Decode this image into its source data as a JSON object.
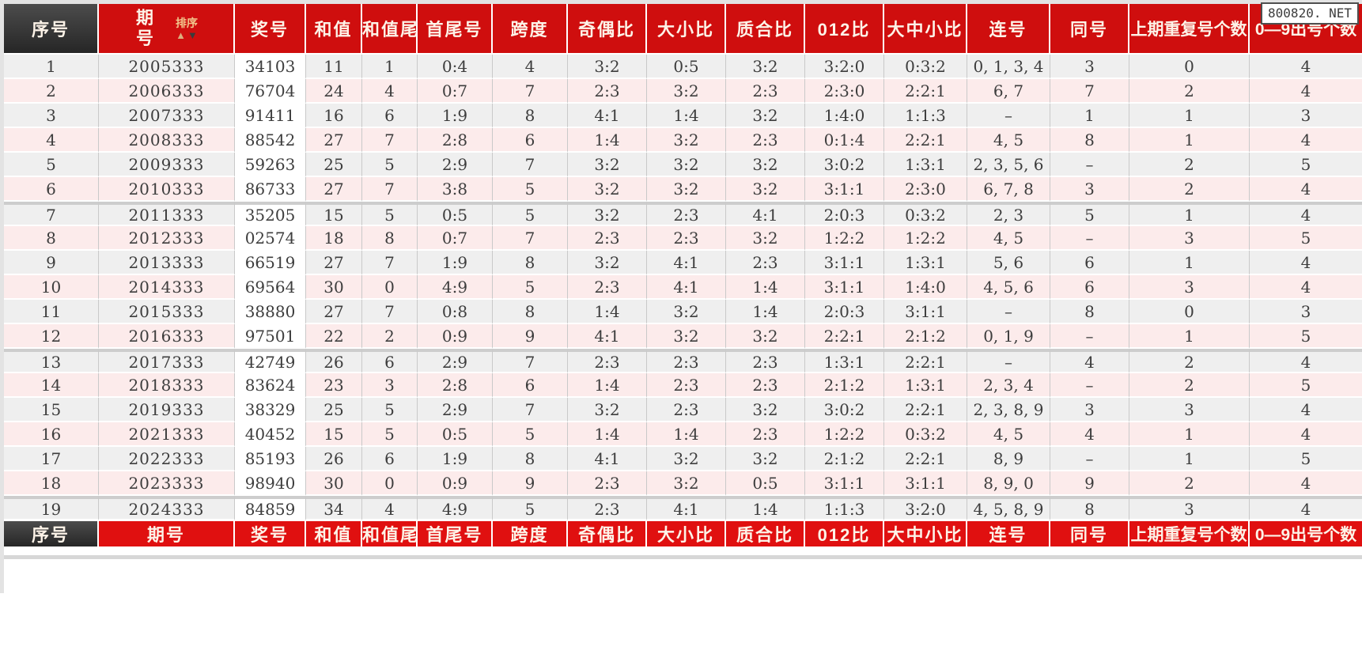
{
  "page": {
    "watermark": "800820. NET"
  },
  "table": {
    "headers": [
      "序号",
      "期号",
      "奖号",
      "和值",
      "和值尾",
      "首尾号",
      "跨度",
      "奇偶比",
      "大小比",
      "质合比",
      "012比",
      "大中小比",
      "连号",
      "同号",
      "上期重复号个数",
      "0—9出号个数"
    ],
    "sort_control": {
      "label": "排序",
      "up_arrow": "▲",
      "down_arrow": "▼"
    },
    "group_breaks": [
      6,
      12,
      18
    ],
    "rows": [
      [
        "1",
        "2005333",
        "34103",
        "11",
        "1",
        "0:4",
        "4",
        "3:2",
        "0:5",
        "3:2",
        "3:2:0",
        "0:3:2",
        "0, 1, 3, 4",
        "3",
        "0",
        "4"
      ],
      [
        "2",
        "2006333",
        "76704",
        "24",
        "4",
        "0:7",
        "7",
        "2:3",
        "3:2",
        "2:3",
        "2:3:0",
        "2:2:1",
        "6, 7",
        "7",
        "2",
        "4"
      ],
      [
        "3",
        "2007333",
        "91411",
        "16",
        "6",
        "1:9",
        "8",
        "4:1",
        "1:4",
        "3:2",
        "1:4:0",
        "1:1:3",
        "–",
        "1",
        "1",
        "3"
      ],
      [
        "4",
        "2008333",
        "88542",
        "27",
        "7",
        "2:8",
        "6",
        "1:4",
        "3:2",
        "2:3",
        "0:1:4",
        "2:2:1",
        "4, 5",
        "8",
        "1",
        "4"
      ],
      [
        "5",
        "2009333",
        "59263",
        "25",
        "5",
        "2:9",
        "7",
        "3:2",
        "3:2",
        "3:2",
        "3:0:2",
        "1:3:1",
        "2, 3, 5, 6",
        "–",
        "2",
        "5"
      ],
      [
        "6",
        "2010333",
        "86733",
        "27",
        "7",
        "3:8",
        "5",
        "3:2",
        "3:2",
        "3:2",
        "3:1:1",
        "2:3:0",
        "6, 7, 8",
        "3",
        "2",
        "4"
      ],
      [
        "7",
        "2011333",
        "35205",
        "15",
        "5",
        "0:5",
        "5",
        "3:2",
        "2:3",
        "4:1",
        "2:0:3",
        "0:3:2",
        "2, 3",
        "5",
        "1",
        "4"
      ],
      [
        "8",
        "2012333",
        "02574",
        "18",
        "8",
        "0:7",
        "7",
        "2:3",
        "2:3",
        "3:2",
        "1:2:2",
        "1:2:2",
        "4, 5",
        "–",
        "3",
        "5"
      ],
      [
        "9",
        "2013333",
        "66519",
        "27",
        "7",
        "1:9",
        "8",
        "3:2",
        "4:1",
        "2:3",
        "3:1:1",
        "1:3:1",
        "5, 6",
        "6",
        "1",
        "4"
      ],
      [
        "10",
        "2014333",
        "69564",
        "30",
        "0",
        "4:9",
        "5",
        "2:3",
        "4:1",
        "1:4",
        "3:1:1",
        "1:4:0",
        "4, 5, 6",
        "6",
        "3",
        "4"
      ],
      [
        "11",
        "2015333",
        "38880",
        "27",
        "7",
        "0:8",
        "8",
        "1:4",
        "3:2",
        "1:4",
        "2:0:3",
        "3:1:1",
        "–",
        "8",
        "0",
        "3"
      ],
      [
        "12",
        "2016333",
        "97501",
        "22",
        "2",
        "0:9",
        "9",
        "4:1",
        "3:2",
        "3:2",
        "2:2:1",
        "2:1:2",
        "0, 1, 9",
        "–",
        "1",
        "5"
      ],
      [
        "13",
        "2017333",
        "42749",
        "26",
        "6",
        "2:9",
        "7",
        "2:3",
        "2:3",
        "2:3",
        "1:3:1",
        "2:2:1",
        "–",
        "4",
        "2",
        "4"
      ],
      [
        "14",
        "2018333",
        "83624",
        "23",
        "3",
        "2:8",
        "6",
        "1:4",
        "2:3",
        "2:3",
        "2:1:2",
        "1:3:1",
        "2, 3, 4",
        "–",
        "2",
        "5"
      ],
      [
        "15",
        "2019333",
        "38329",
        "25",
        "5",
        "2:9",
        "7",
        "3:2",
        "2:3",
        "3:2",
        "3:0:2",
        "2:2:1",
        "2, 3, 8, 9",
        "3",
        "3",
        "4"
      ],
      [
        "16",
        "2021333",
        "40452",
        "15",
        "5",
        "0:5",
        "5",
        "1:4",
        "1:4",
        "2:3",
        "1:2:2",
        "0:3:2",
        "4, 5",
        "4",
        "1",
        "4"
      ],
      [
        "17",
        "2022333",
        "85193",
        "26",
        "6",
        "1:9",
        "8",
        "4:1",
        "3:2",
        "3:2",
        "2:1:2",
        "2:2:1",
        "8, 9",
        "–",
        "1",
        "5"
      ],
      [
        "18",
        "2023333",
        "98940",
        "30",
        "0",
        "0:9",
        "9",
        "2:3",
        "3:2",
        "0:5",
        "3:1:1",
        "3:1:1",
        "8, 9, 0",
        "9",
        "2",
        "4"
      ],
      [
        "19",
        "2024333",
        "84859",
        "34",
        "4",
        "4:9",
        "5",
        "2:3",
        "4:1",
        "1:4",
        "1:1:3",
        "3:2:0",
        "4, 5, 8, 9",
        "8",
        "3",
        "4"
      ]
    ],
    "colors": {
      "header_red": "#cf0e0e",
      "footer_red": "#e01010",
      "corner_dark": "#3a3a3a",
      "row_odd": "#efefef",
      "row_even": "#fcebeb",
      "prize_column": "#ffffff",
      "sort_gold": "#f2c78d"
    }
  }
}
